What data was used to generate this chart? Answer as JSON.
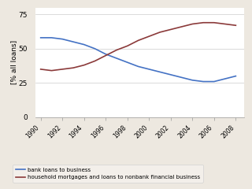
{
  "years": [
    1990,
    1991,
    1992,
    1993,
    1994,
    1995,
    1996,
    1997,
    1998,
    1999,
    2000,
    2001,
    2002,
    2003,
    2004,
    2005,
    2006,
    2007,
    2008
  ],
  "bank_loans": [
    58,
    58,
    57,
    55,
    53,
    50,
    46,
    43,
    40,
    37,
    35,
    33,
    31,
    29,
    27,
    26,
    26,
    28,
    30
  ],
  "household_mortgages": [
    35,
    34,
    35,
    36,
    38,
    41,
    45,
    49,
    52,
    56,
    59,
    62,
    64,
    66,
    68,
    69,
    69,
    68,
    67
  ],
  "bank_loans_color": "#4472C4",
  "household_color": "#8B3A3A",
  "ylim": [
    0,
    80
  ],
  "yticks": [
    0,
    25,
    50,
    75
  ],
  "xtick_years": [
    1990,
    1992,
    1994,
    1996,
    1998,
    2000,
    2002,
    2004,
    2006,
    2008
  ],
  "ylabel": "[% all loans]",
  "legend_bank": "bank loans to business",
  "legend_household": "household mortgages and loans to nonbank financial business",
  "bg_color": "#EDE8E0",
  "plot_bg_color": "#FFFFFF",
  "grid_color": "#CCCCCC",
  "legend_box_color": "#F5F2ED"
}
